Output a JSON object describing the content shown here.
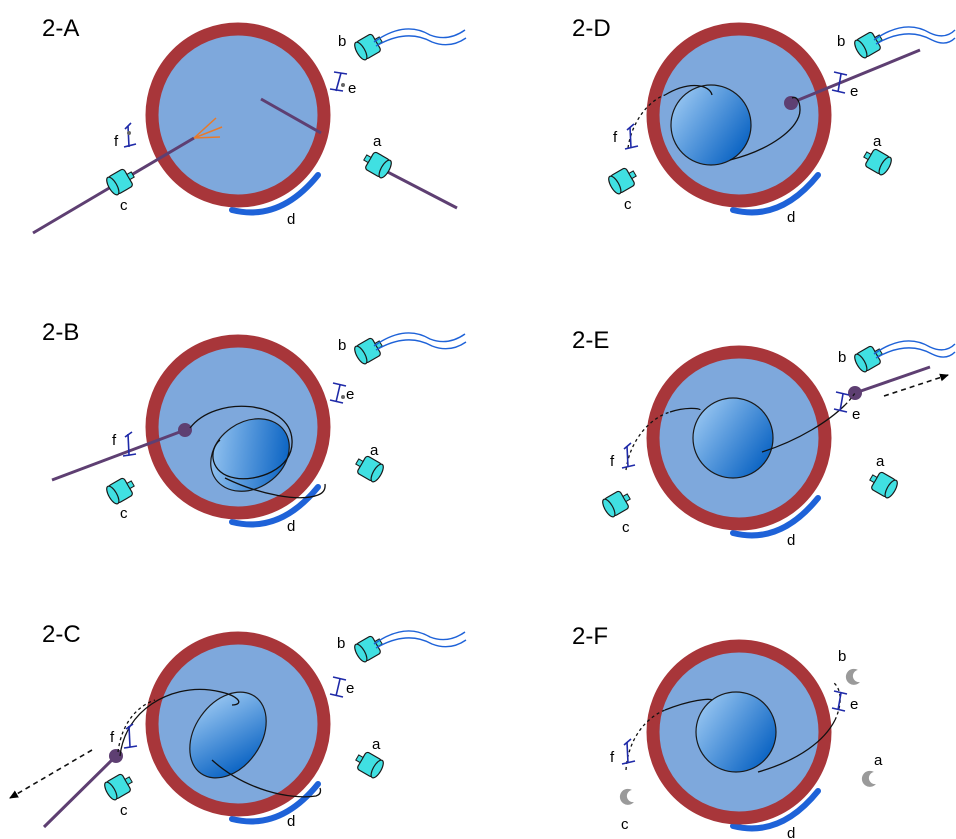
{
  "colors": {
    "vitreous": "#7ea8dc",
    "eye_wall": "#a8363a",
    "lens_light": "#a9d2f7",
    "lens_dark": "#0a63c3",
    "instrument": "#5e3f72",
    "port": "#40e0e2",
    "speculum": "#1e62d8",
    "suture": "#1f2aa8",
    "fiber": "#e87a2a",
    "needle_gray": "#999999"
  },
  "panels": [
    {
      "id": "A",
      "title": "2-A",
      "labels": {
        "a": "a",
        "b": "b",
        "c": "c",
        "d": "d",
        "e": "e",
        "f": "f"
      }
    },
    {
      "id": "B",
      "title": "2-B",
      "labels": {
        "a": "a",
        "b": "b",
        "c": "c",
        "d": "d",
        "e": "e",
        "f": "f"
      }
    },
    {
      "id": "C",
      "title": "2-C",
      "labels": {
        "a": "a",
        "b": "b",
        "c": "c",
        "d": "d",
        "e": "e",
        "f": "f"
      }
    },
    {
      "id": "D",
      "title": "2-D",
      "labels": {
        "a": "a",
        "b": "b",
        "c": "c",
        "d": "d",
        "e": "e",
        "f": "f"
      }
    },
    {
      "id": "E",
      "title": "2-E",
      "labels": {
        "a": "a",
        "b": "b",
        "c": "c",
        "d": "d",
        "e": "e",
        "f": "f"
      }
    },
    {
      "id": "F",
      "title": "2-F",
      "labels": {
        "a": "a",
        "b": "b",
        "c": "c",
        "d": "d",
        "e": "e",
        "f": "f"
      }
    }
  ]
}
